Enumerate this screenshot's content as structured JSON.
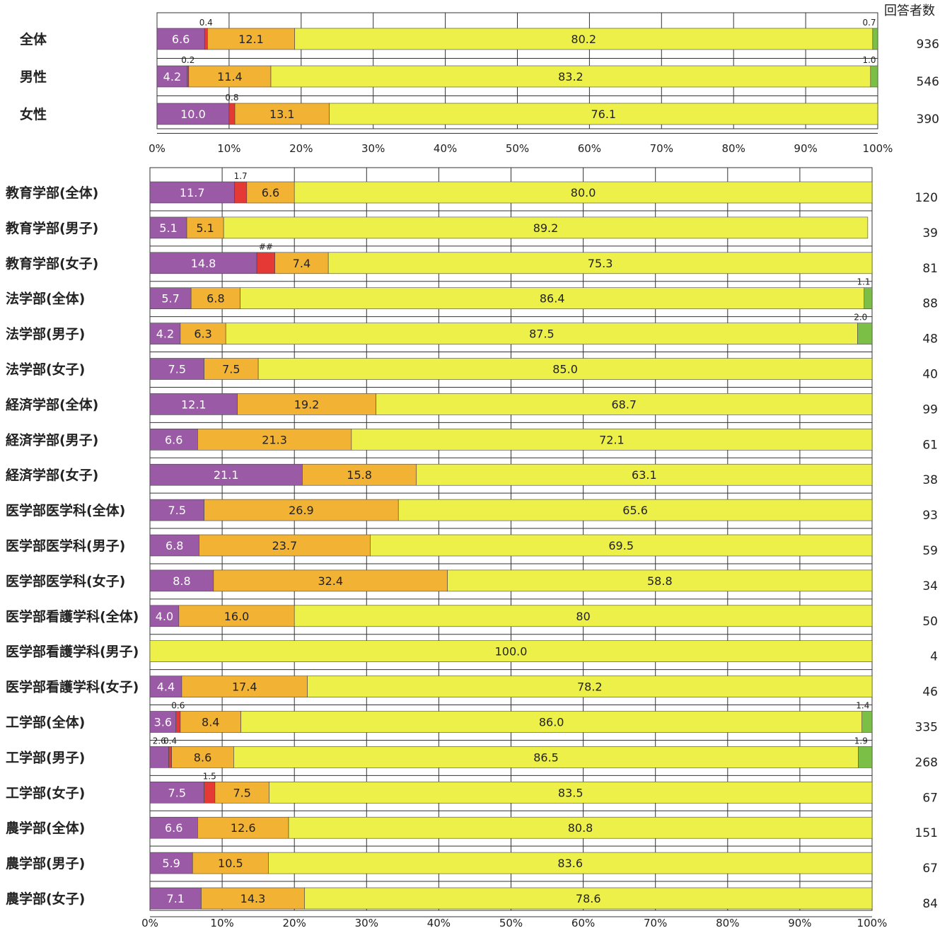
{
  "header": {
    "count_title": "回答者数"
  },
  "colors": {
    "s1": "#9b5aa6",
    "s2": "#e53935",
    "s3": "#f2b233",
    "s4": "#eef04a",
    "s5": "#7cbf46"
  },
  "chart_data": [
    {
      "type": "bar",
      "orientation": "horizontal",
      "stacked": true,
      "x_ticks": [
        "0%",
        "10%",
        "20%",
        "30%",
        "40%",
        "50%",
        "60%",
        "70%",
        "80%",
        "90%",
        "100%"
      ],
      "xlim": [
        0,
        100
      ],
      "rows": [
        {
          "label": "全体",
          "count": "936",
          "values": [
            6.6,
            0.4,
            12.1,
            80.2,
            0.7
          ],
          "labels": [
            "6.6",
            "0.4",
            "12.1",
            "80.2",
            "0.7"
          ]
        },
        {
          "label": "男性",
          "count": "546",
          "values": [
            4.2,
            0.2,
            11.4,
            83.2,
            1.0
          ],
          "labels": [
            "4.2",
            "0.2",
            "11.4",
            "83.2",
            "1.0"
          ]
        },
        {
          "label": "女性",
          "count": "390",
          "values": [
            10.0,
            0.8,
            13.1,
            76.1,
            0
          ],
          "labels": [
            "10.0",
            "0.8",
            "13.1",
            "76.1",
            ""
          ]
        }
      ]
    },
    {
      "type": "bar",
      "orientation": "horizontal",
      "stacked": true,
      "x_ticks": [
        "0%",
        "10%",
        "20%",
        "30%",
        "40%",
        "50%",
        "60%",
        "70%",
        "80%",
        "90%",
        "100%"
      ],
      "xlim": [
        0,
        100
      ],
      "rows": [
        {
          "label": "教育学部(全体)",
          "count": "120",
          "values": [
            11.7,
            1.7,
            6.6,
            80.0,
            0
          ],
          "labels": [
            "11.7",
            "1.7",
            "6.6",
            "80.0",
            ""
          ]
        },
        {
          "label": "教育学部(男子)",
          "count": "39",
          "values": [
            5.1,
            0,
            5.1,
            89.2,
            0
          ],
          "labels": [
            "5.1",
            "",
            "5.1",
            "89.2",
            ""
          ]
        },
        {
          "label": "教育学部(女子)",
          "count": "81",
          "values": [
            14.8,
            2.5,
            7.4,
            75.3,
            0
          ],
          "labels": [
            "14.8",
            "##",
            "7.4",
            "75.3",
            ""
          ]
        },
        {
          "label": "法学部(全体)",
          "count": "88",
          "values": [
            5.7,
            0,
            6.8,
            86.4,
            1.1
          ],
          "labels": [
            "5.7",
            "",
            "6.8",
            "86.4",
            "1.1"
          ]
        },
        {
          "label": "法学部(男子)",
          "count": "48",
          "values": [
            4.2,
            0,
            6.3,
            87.5,
            2.0
          ],
          "labels": [
            "4.2",
            "",
            "6.3",
            "87.5",
            "2.0"
          ]
        },
        {
          "label": "法学部(女子)",
          "count": "40",
          "values": [
            7.5,
            0,
            7.5,
            85.0,
            0
          ],
          "labels": [
            "7.5",
            "",
            "7.5",
            "85.0",
            ""
          ]
        },
        {
          "label": "経済学部(全体)",
          "count": "99",
          "values": [
            12.1,
            0,
            19.2,
            68.7,
            0
          ],
          "labels": [
            "12.1",
            "",
            "19.2",
            "68.7",
            ""
          ]
        },
        {
          "label": "経済学部(男子)",
          "count": "61",
          "values": [
            6.6,
            0,
            21.3,
            72.1,
            0
          ],
          "labels": [
            "6.6",
            "",
            "21.3",
            "72.1",
            ""
          ]
        },
        {
          "label": "経済学部(女子)",
          "count": "38",
          "values": [
            21.1,
            0,
            15.8,
            63.1,
            0
          ],
          "labels": [
            "21.1",
            "",
            "15.8",
            "63.1",
            ""
          ]
        },
        {
          "label": "医学部医学科(全体)",
          "count": "93",
          "values": [
            7.5,
            0,
            26.9,
            65.6,
            0
          ],
          "labels": [
            "7.5",
            "",
            "26.9",
            "65.6",
            ""
          ]
        },
        {
          "label": "医学部医学科(男子)",
          "count": "59",
          "values": [
            6.8,
            0,
            23.7,
            69.5,
            0
          ],
          "labels": [
            "6.8",
            "",
            "23.7",
            "69.5",
            ""
          ]
        },
        {
          "label": "医学部医学科(女子)",
          "count": "34",
          "values": [
            8.8,
            0,
            32.4,
            58.8,
            0
          ],
          "labels": [
            "8.8",
            "",
            "32.4",
            "58.8",
            ""
          ]
        },
        {
          "label": "医学部看護学科(全体)",
          "count": "50",
          "values": [
            4.0,
            0,
            16.0,
            80,
            0
          ],
          "labels": [
            "4.0",
            "",
            "16.0",
            "80",
            ""
          ]
        },
        {
          "label": "医学部看護学科(男子)",
          "count": "4",
          "values": [
            0,
            0,
            0,
            100.0,
            0
          ],
          "labels": [
            "",
            "",
            "",
            "100.0",
            ""
          ]
        },
        {
          "label": "医学部看護学科(女子)",
          "count": "46",
          "values": [
            4.4,
            0,
            17.4,
            78.2,
            0
          ],
          "labels": [
            "4.4",
            "",
            "17.4",
            "78.2",
            ""
          ]
        },
        {
          "label": "工学部(全体)",
          "count": "335",
          "values": [
            3.6,
            0.6,
            8.4,
            86.0,
            1.4
          ],
          "labels": [
            "3.6",
            "0.6",
            "8.4",
            "86.0",
            "1.4"
          ]
        },
        {
          "label": "工学部(男子)",
          "count": "268",
          "values": [
            2.6,
            0.4,
            8.6,
            86.5,
            1.9
          ],
          "labels": [
            "2.6",
            "0.4",
            "8.6",
            "86.5",
            "1.9"
          ]
        },
        {
          "label": "工学部(女子)",
          "count": "67",
          "values": [
            7.5,
            1.5,
            7.5,
            83.5,
            0
          ],
          "labels": [
            "7.5",
            "1.5",
            "7.5",
            "83.5",
            ""
          ]
        },
        {
          "label": "農学部(全体)",
          "count": "151",
          "values": [
            6.6,
            0,
            12.6,
            80.8,
            0
          ],
          "labels": [
            "6.6",
            "",
            "12.6",
            "80.8",
            ""
          ]
        },
        {
          "label": "農学部(男子)",
          "count": "67",
          "values": [
            5.9,
            0,
            10.5,
            83.6,
            0
          ],
          "labels": [
            "5.9",
            "",
            "10.5",
            "83.6",
            ""
          ]
        },
        {
          "label": "農学部(女子)",
          "count": "84",
          "values": [
            7.1,
            0,
            14.3,
            78.6,
            0
          ],
          "labels": [
            "7.1",
            "",
            "14.3",
            "78.6",
            ""
          ]
        }
      ]
    }
  ]
}
